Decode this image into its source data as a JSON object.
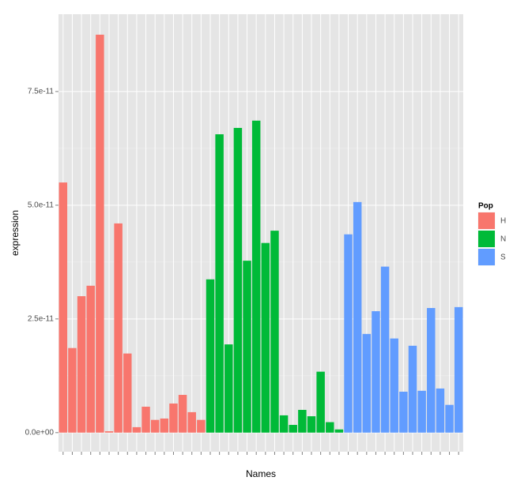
{
  "chart_data": {
    "type": "bar",
    "x_label": "Names",
    "y_label": "expression",
    "categories": [
      null,
      null,
      null,
      null,
      null,
      null,
      null,
      null,
      null,
      null,
      null,
      null,
      null,
      null,
      null,
      null,
      null,
      null,
      null,
      null,
      null,
      null,
      null,
      null,
      null,
      null,
      null,
      null,
      null,
      null,
      null,
      null,
      null,
      null,
      null,
      null,
      null,
      null,
      null,
      null,
      null,
      null,
      null,
      null
    ],
    "series": [
      {
        "name": "H",
        "color": "#f8766d",
        "values": [
          5.5e-11,
          1.86e-11,
          3e-11,
          3.23e-11,
          8.75e-11,
          3e-13,
          4.6e-11,
          1.74e-11,
          1.2e-12,
          5.7e-12,
          2.8e-12,
          3.1e-12,
          6.4e-12,
          8.3e-12,
          4.5e-12,
          2.8e-12,
          null,
          null,
          null,
          null,
          null,
          null,
          null,
          null,
          null,
          null,
          null,
          null,
          null,
          null,
          null,
          null,
          null,
          null,
          null,
          null,
          null,
          null,
          null,
          null,
          null,
          null,
          null,
          null
        ]
      },
      {
        "name": "N",
        "color": "#00ba38",
        "values": [
          null,
          null,
          null,
          null,
          null,
          null,
          null,
          null,
          null,
          null,
          null,
          null,
          null,
          null,
          null,
          null,
          3.37e-11,
          6.56e-11,
          1.94e-11,
          6.7e-11,
          3.78e-11,
          6.86e-11,
          4.17e-11,
          4.44e-11,
          3.8e-12,
          1.7e-12,
          5e-12,
          3.6e-12,
          1.34e-11,
          2.3e-12,
          7e-13,
          null,
          null,
          null,
          null,
          null,
          null,
          null,
          null,
          null,
          null,
          null,
          null,
          null
        ]
      },
      {
        "name": "S",
        "color": "#619cff",
        "values": [
          null,
          null,
          null,
          null,
          null,
          null,
          null,
          null,
          null,
          null,
          null,
          null,
          null,
          null,
          null,
          null,
          null,
          null,
          null,
          null,
          null,
          null,
          null,
          null,
          null,
          null,
          null,
          null,
          null,
          null,
          null,
          4.36e-11,
          5.07e-11,
          2.17e-11,
          2.67e-11,
          3.65e-11,
          2.07e-11,
          9e-12,
          1.91e-11,
          9.2e-12,
          2.74e-11,
          9.7e-12,
          6.1e-12,
          2.76e-11
        ]
      }
    ],
    "legend_title": "Pop",
    "ylim": [
      -4.2e-12,
      9.2e-11
    ],
    "yticks": [
      {
        "value": 0,
        "label": "0.0e+00"
      },
      {
        "value": 2.5e-11,
        "label": "2.5e-11"
      },
      {
        "value": 5e-11,
        "label": "5.0e-11"
      },
      {
        "value": 7.5e-11,
        "label": "7.5e-11"
      }
    ],
    "grid": true
  }
}
